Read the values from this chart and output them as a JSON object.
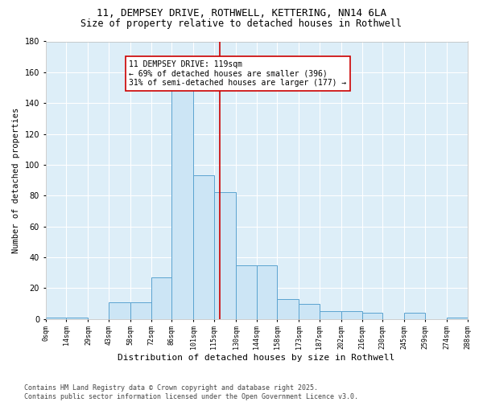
{
  "title1": "11, DEMPSEY DRIVE, ROTHWELL, KETTERING, NN14 6LA",
  "title2": "Size of property relative to detached houses in Rothwell",
  "xlabel": "Distribution of detached houses by size in Rothwell",
  "ylabel": "Number of detached properties",
  "bar_edges": [
    0,
    14,
    29,
    43,
    58,
    72,
    86,
    101,
    115,
    130,
    144,
    158,
    173,
    187,
    202,
    216,
    230,
    245,
    259,
    274,
    288
  ],
  "bar_heights": [
    1,
    1,
    0,
    11,
    11,
    27,
    150,
    93,
    82,
    35,
    35,
    13,
    10,
    5,
    5,
    4,
    0,
    4,
    0,
    1
  ],
  "bar_color": "#cce5f5",
  "bar_edge_color": "#5ba3d0",
  "vline_x": 119,
  "vline_color": "#cc0000",
  "annotation_text": "11 DEMPSEY DRIVE: 119sqm\n← 69% of detached houses are smaller (396)\n31% of semi-detached houses are larger (177) →",
  "annotation_box_facecolor": "#ffffff",
  "annotation_box_edgecolor": "#cc0000",
  "ylim": [
    0,
    180
  ],
  "yticks": [
    0,
    20,
    40,
    60,
    80,
    100,
    120,
    140,
    160,
    180
  ],
  "tick_labels": [
    "0sqm",
    "14sqm",
    "29sqm",
    "43sqm",
    "58sqm",
    "72sqm",
    "86sqm",
    "101sqm",
    "115sqm",
    "130sqm",
    "144sqm",
    "158sqm",
    "173sqm",
    "187sqm",
    "202sqm",
    "216sqm",
    "230sqm",
    "245sqm",
    "259sqm",
    "274sqm",
    "288sqm"
  ],
  "bg_color": "#ddeef8",
  "plot_bg_color": "#ddeef8",
  "grid_color": "#ffffff",
  "fig_bg_color": "#ffffff",
  "footer_text": "Contains HM Land Registry data © Crown copyright and database right 2025.\nContains public sector information licensed under the Open Government Licence v3.0.",
  "title_fontsize": 9,
  "subtitle_fontsize": 8.5,
  "annotation_fontsize": 7,
  "footer_fontsize": 6,
  "xlabel_fontsize": 8,
  "ylabel_fontsize": 7.5,
  "xtick_fontsize": 6,
  "ytick_fontsize": 7
}
